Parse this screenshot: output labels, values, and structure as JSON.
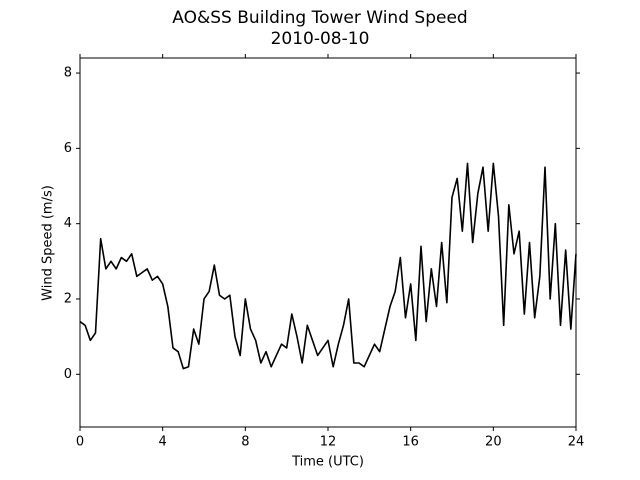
{
  "chart_data": {
    "type": "line",
    "title": "AO&SS Building Tower Wind Speed",
    "subtitle": "2010-08-10",
    "x_label": "Time (UTC)",
    "y_label": "Wind Speed (m/s)",
    "x": [
      0,
      0.25,
      0.5,
      0.75,
      1,
      1.25,
      1.5,
      1.75,
      2,
      2.25,
      2.5,
      2.75,
      3,
      3.25,
      3.5,
      3.75,
      4,
      4.25,
      4.5,
      4.75,
      5,
      5.25,
      5.5,
      5.75,
      6,
      6.25,
      6.5,
      6.75,
      7,
      7.25,
      7.5,
      7.75,
      8,
      8.25,
      8.5,
      8.75,
      9,
      9.25,
      9.5,
      9.75,
      10,
      10.25,
      10.5,
      10.75,
      11,
      11.25,
      11.5,
      11.75,
      12,
      12.25,
      12.5,
      12.75,
      13,
      13.25,
      13.5,
      13.75,
      14,
      14.25,
      14.5,
      14.75,
      15,
      15.25,
      15.5,
      15.75,
      16,
      16.25,
      16.5,
      16.75,
      17,
      17.25,
      17.5,
      17.75,
      18,
      18.25,
      18.5,
      18.75,
      19,
      19.25,
      19.5,
      19.75,
      20,
      20.25,
      20.5,
      20.75,
      21,
      21.25,
      21.5,
      21.75,
      22,
      22.25,
      22.5,
      22.75,
      23,
      23.25,
      23.5,
      23.75,
      24
    ],
    "series": [
      {
        "name": "Wind Speed",
        "color": "#000000",
        "values": [
          1.4,
          1.3,
          0.9,
          1.1,
          3.6,
          2.8,
          3.0,
          2.8,
          3.1,
          3.0,
          3.2,
          2.6,
          2.7,
          2.8,
          2.5,
          2.6,
          2.4,
          1.8,
          0.7,
          0.6,
          0.15,
          0.2,
          1.2,
          0.8,
          2.0,
          2.2,
          2.9,
          2.1,
          2.0,
          2.1,
          1.0,
          0.5,
          2.0,
          1.2,
          0.9,
          0.3,
          0.6,
          0.2,
          0.5,
          0.8,
          0.7,
          1.6,
          1.0,
          0.3,
          1.3,
          0.9,
          0.5,
          0.7,
          0.9,
          0.2,
          0.8,
          1.3,
          2.0,
          0.3,
          0.3,
          0.2,
          0.5,
          0.8,
          0.6,
          1.2,
          1.8,
          2.2,
          3.1,
          1.5,
          2.4,
          0.9,
          3.4,
          1.4,
          2.8,
          1.8,
          3.5,
          1.9,
          4.7,
          5.2,
          3.8,
          5.6,
          3.5,
          4.8,
          5.5,
          3.8,
          5.6,
          4.2,
          1.3,
          4.5,
          3.2,
          3.8,
          1.6,
          3.5,
          1.5,
          2.6,
          5.5,
          2.0,
          4.0,
          1.3,
          3.3,
          1.2,
          3.2
        ]
      }
    ],
    "xlim": [
      0,
      24
    ],
    "xticks": [
      0,
      4,
      8,
      12,
      16,
      20,
      24
    ],
    "ylim": [
      -1.4,
      8.4
    ],
    "yticks": [
      0,
      2,
      4,
      6,
      8
    ]
  }
}
